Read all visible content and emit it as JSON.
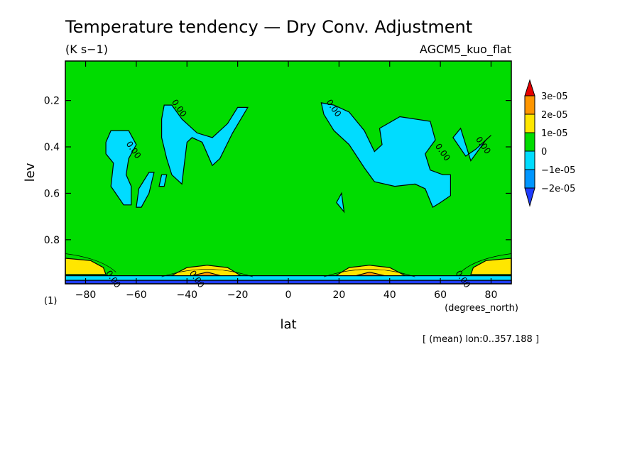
{
  "chart_data": {
    "type": "heatmap",
    "title": "Temperature tendency — Dry Conv. Adjustment",
    "units": "(K s−1)",
    "model": "AGCM5_kuo_flat",
    "xlabel": "lat",
    "xunits": "(degrees_north)",
    "ylabel": "lev",
    "yunits": "(1)",
    "footnote": "[ (mean) lon:0..357.188 ]",
    "xlim": [
      -88,
      88
    ],
    "ylim": [
      0.03,
      0.99
    ],
    "x_ticks": [
      -80,
      -60,
      -40,
      -20,
      0,
      20,
      40,
      60,
      80
    ],
    "x_tick_labels": [
      "−80",
      "−60",
      "−40",
      "−20",
      "0",
      "20",
      "40",
      "60",
      "80"
    ],
    "y_ticks": [
      0.2,
      0.4,
      0.6,
      0.8
    ],
    "y_tick_labels": [
      "0.2",
      "0.4",
      "0.6",
      "0.8"
    ],
    "colorbar": {
      "levels": [
        "−2e-05",
        "−1e-05",
        "0",
        "1e-05",
        "2e-05",
        "3e-05"
      ],
      "colors": [
        "#1e3cff",
        "#0096ff",
        "#00dcff",
        "#00dc00",
        "#ffe600",
        "#ff9600",
        "#e60000"
      ]
    },
    "contour_label": "0.00",
    "regions": [
      {
        "fill": "#00dcff",
        "points": [
          [
            -49,
            0.22
          ],
          [
            -46,
            0.22
          ],
          [
            -42,
            0.28
          ],
          [
            -36,
            0.34
          ],
          [
            -30,
            0.36
          ],
          [
            -24,
            0.3
          ],
          [
            -20,
            0.23
          ],
          [
            -16,
            0.23
          ],
          [
            -22,
            0.34
          ],
          [
            -27,
            0.45
          ],
          [
            -30,
            0.48
          ],
          [
            -34,
            0.38
          ],
          [
            -38,
            0.36
          ],
          [
            -40,
            0.38
          ],
          [
            -42,
            0.56
          ],
          [
            -46,
            0.52
          ],
          [
            -48,
            0.45
          ],
          [
            -50,
            0.36
          ],
          [
            -50,
            0.28
          ]
        ]
      },
      {
        "fill": "#00dcff",
        "points": [
          [
            -70,
            0.33
          ],
          [
            -63,
            0.33
          ],
          [
            -60,
            0.39
          ],
          [
            -63,
            0.45
          ],
          [
            -64,
            0.52
          ],
          [
            -62,
            0.57
          ],
          [
            -62,
            0.65
          ],
          [
            -65,
            0.65
          ],
          [
            -70,
            0.57
          ],
          [
            -69,
            0.47
          ],
          [
            -72,
            0.43
          ],
          [
            -72,
            0.38
          ]
        ]
      },
      {
        "fill": "#00dcff",
        "points": [
          [
            -55,
            0.51
          ],
          [
            -53,
            0.51
          ],
          [
            -55,
            0.6
          ],
          [
            -58,
            0.66
          ],
          [
            -60,
            0.66
          ],
          [
            -59,
            0.58
          ]
        ]
      },
      {
        "fill": "#00dcff",
        "points": [
          [
            -50,
            0.52
          ],
          [
            -48,
            0.52
          ],
          [
            -49,
            0.57
          ],
          [
            -51,
            0.57
          ]
        ]
      },
      {
        "fill": "#00dcff",
        "points": [
          [
            13,
            0.21
          ],
          [
            18,
            0.22
          ],
          [
            24,
            0.25
          ],
          [
            30,
            0.33
          ],
          [
            34,
            0.42
          ],
          [
            37,
            0.39
          ],
          [
            36,
            0.32
          ],
          [
            44,
            0.27
          ],
          [
            56,
            0.29
          ],
          [
            58,
            0.37
          ],
          [
            54,
            0.43
          ],
          [
            56,
            0.5
          ],
          [
            61,
            0.52
          ],
          [
            64,
            0.52
          ],
          [
            64,
            0.61
          ],
          [
            60,
            0.64
          ],
          [
            57,
            0.66
          ],
          [
            54,
            0.58
          ],
          [
            50,
            0.56
          ],
          [
            42,
            0.57
          ],
          [
            34,
            0.55
          ],
          [
            30,
            0.49
          ],
          [
            24,
            0.39
          ],
          [
            18,
            0.33
          ],
          [
            14,
            0.26
          ]
        ]
      },
      {
        "fill": "#00dcff",
        "points": [
          [
            68,
            0.32
          ],
          [
            72,
            0.46
          ],
          [
            78,
            0.37
          ],
          [
            80,
            0.35
          ],
          [
            74,
            0.41
          ],
          [
            70,
            0.44
          ],
          [
            65,
            0.36
          ]
        ]
      },
      {
        "fill": "#00dcff",
        "points": [
          [
            21,
            0.6
          ],
          [
            22,
            0.68
          ],
          [
            19,
            0.64
          ]
        ]
      },
      {
        "fill": "#ffe600",
        "points": [
          [
            -88,
            0.88
          ],
          [
            -78,
            0.89
          ],
          [
            -73,
            0.92
          ],
          [
            -72,
            0.95
          ],
          [
            -88,
            0.95
          ]
        ]
      },
      {
        "fill": "#ffe600",
        "points": [
          [
            -47,
            0.96
          ],
          [
            -40,
            0.92
          ],
          [
            -32,
            0.91
          ],
          [
            -24,
            0.92
          ],
          [
            -18,
            0.96
          ]
        ]
      },
      {
        "fill": "#ff9600",
        "points": [
          [
            -40,
            0.96
          ],
          [
            -32,
            0.94
          ],
          [
            -25,
            0.96
          ]
        ]
      },
      {
        "fill": "#ffe600",
        "points": [
          [
            18,
            0.96
          ],
          [
            24,
            0.92
          ],
          [
            32,
            0.91
          ],
          [
            40,
            0.92
          ],
          [
            47,
            0.96
          ]
        ]
      },
      {
        "fill": "#ff9600",
        "points": [
          [
            25,
            0.96
          ],
          [
            32,
            0.94
          ],
          [
            40,
            0.96
          ]
        ]
      },
      {
        "fill": "#ffe600",
        "points": [
          [
            72,
            0.95
          ],
          [
            73,
            0.92
          ],
          [
            78,
            0.89
          ],
          [
            88,
            0.88
          ],
          [
            88,
            0.95
          ]
        ]
      },
      {
        "fill": "#00dcff",
        "points": [
          [
            -88,
            0.955
          ],
          [
            88,
            0.955
          ],
          [
            88,
            0.975
          ],
          [
            -88,
            0.975
          ]
        ]
      },
      {
        "fill": "#1e3cff",
        "points": [
          [
            -88,
            0.975
          ],
          [
            88,
            0.975
          ],
          [
            88,
            0.99
          ],
          [
            -88,
            0.99
          ]
        ]
      }
    ],
    "label_positions": [
      [
        -44,
        0.24
      ],
      [
        -62,
        0.42
      ],
      [
        17,
        0.24
      ],
      [
        60,
        0.43
      ],
      [
        76,
        0.4
      ],
      [
        -70,
        0.977
      ],
      [
        -37,
        0.977
      ],
      [
        68,
        0.977
      ]
    ]
  }
}
